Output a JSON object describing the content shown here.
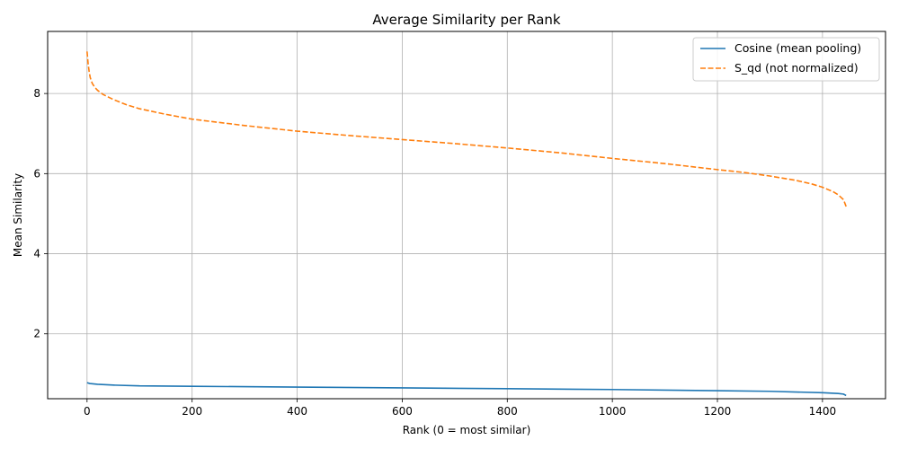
{
  "chart_data": {
    "type": "line",
    "title": "Average Similarity per Rank",
    "xlabel": "Rank (0 = most similar)",
    "ylabel": "Mean Similarity",
    "xlim": [
      -75,
      1520
    ],
    "ylim": [
      0.38,
      9.55
    ],
    "xticks": [
      0,
      200,
      400,
      600,
      800,
      1000,
      1200,
      1400
    ],
    "yticks": [
      2,
      4,
      6,
      8
    ],
    "grid": true,
    "legend_position": "top-right",
    "series": [
      {
        "name": "Cosine (mean pooling)",
        "color": "#1f77b4",
        "style": "solid",
        "x": [
          0,
          5,
          20,
          50,
          100,
          200,
          400,
          600,
          800,
          1000,
          1200,
          1300,
          1400,
          1430,
          1440,
          1445
        ],
        "y": [
          0.78,
          0.76,
          0.74,
          0.72,
          0.7,
          0.69,
          0.67,
          0.65,
          0.63,
          0.61,
          0.58,
          0.565,
          0.53,
          0.51,
          0.495,
          0.46
        ]
      },
      {
        "name": "S_qd (not normalized)",
        "color": "#ff7f0e",
        "style": "dashed",
        "x": [
          0,
          1,
          2,
          4,
          6,
          10,
          15,
          20,
          30,
          50,
          75,
          100,
          150,
          200,
          300,
          400,
          500,
          600,
          700,
          800,
          900,
          1000,
          1100,
          1200,
          1250,
          1300,
          1350,
          1380,
          1400,
          1420,
          1430,
          1440,
          1445
        ],
        "y": [
          9.05,
          8.9,
          8.75,
          8.55,
          8.4,
          8.25,
          8.15,
          8.08,
          7.98,
          7.85,
          7.72,
          7.62,
          7.48,
          7.36,
          7.2,
          7.06,
          6.95,
          6.85,
          6.75,
          6.64,
          6.52,
          6.38,
          6.25,
          6.1,
          6.03,
          5.94,
          5.83,
          5.74,
          5.66,
          5.55,
          5.47,
          5.35,
          5.18
        ]
      }
    ]
  }
}
